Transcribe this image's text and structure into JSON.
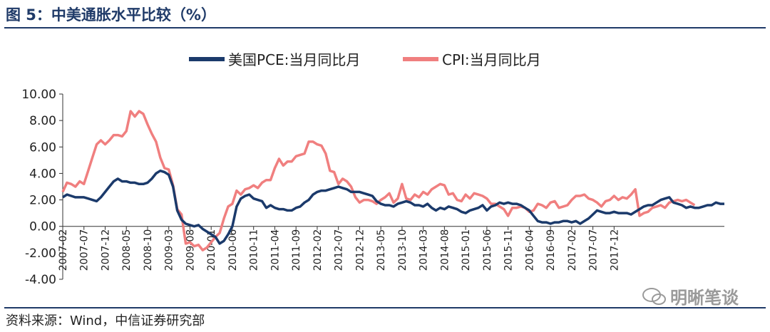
{
  "header": {
    "title": "图 5：中美通胀水平比较（%）"
  },
  "footer": {
    "source": "资料来源：Wind，中信证券研究部",
    "watermark": "明晰笔谈"
  },
  "colors": {
    "pce": "#1b3a6b",
    "cpi": "#f07f7f",
    "accent": "#1f3a68"
  },
  "chart_data": {
    "type": "line",
    "title": "",
    "xlabel": "",
    "ylabel": "",
    "ylim": [
      -4,
      10
    ],
    "yticks": [
      "10.00",
      "8.00",
      "6.00",
      "4.00",
      "2.00",
      "0.00",
      "-2.00",
      "-4.00"
    ],
    "x_start": "2007-02",
    "x_end": "2017-12",
    "xticks": [
      "2007-02",
      "2007-07",
      "2007-12",
      "2008-05",
      "2008-10",
      "2009-03",
      "2009-08",
      "2010-01",
      "2010-06",
      "2010-11",
      "2011-04",
      "2011-09",
      "2012-02",
      "2012-07",
      "2012-12",
      "2013-05",
      "2013-10",
      "2014-03",
      "2014-08",
      "2015-01",
      "2015-06",
      "2015-11",
      "2016-04",
      "2016-09",
      "2017-02",
      "2017-07",
      "2017-12"
    ],
    "legend_position": "top-center",
    "grid": false,
    "series": [
      {
        "name": "美国PCE:当月同比月",
        "color": "#1b3a6b",
        "values": [
          2.2,
          2.4,
          2.3,
          2.2,
          2.2,
          2.2,
          2.1,
          2.0,
          1.9,
          2.2,
          2.6,
          3.0,
          3.4,
          3.6,
          3.4,
          3.4,
          3.3,
          3.3,
          3.2,
          3.2,
          3.3,
          3.6,
          4.0,
          4.2,
          4.1,
          3.9,
          3.0,
          1.2,
          0.5,
          0.2,
          0.1,
          0.0,
          0.1,
          -0.2,
          -0.4,
          -0.6,
          -0.8,
          -1.3,
          -1.1,
          -0.6,
          0.0,
          1.5,
          2.1,
          2.3,
          2.4,
          2.1,
          2.0,
          1.9,
          1.4,
          1.6,
          1.4,
          1.3,
          1.3,
          1.2,
          1.2,
          1.4,
          1.5,
          1.8,
          2.0,
          2.4,
          2.6,
          2.7,
          2.7,
          2.8,
          2.9,
          3.0,
          2.9,
          2.8,
          2.6,
          2.6,
          2.6,
          2.5,
          2.4,
          2.3,
          1.9,
          1.7,
          1.6,
          1.6,
          1.5,
          1.7,
          1.8,
          1.9,
          1.8,
          1.6,
          1.6,
          1.5,
          1.7,
          1.4,
          1.2,
          1.4,
          1.3,
          1.5,
          1.4,
          1.3,
          1.1,
          1.0,
          1.2,
          1.3,
          1.4,
          1.6,
          1.2,
          1.5,
          1.6,
          1.8,
          1.7,
          1.8,
          1.7,
          1.7,
          1.6,
          1.4,
          1.2,
          0.8,
          0.4,
          0.3,
          0.3,
          0.2,
          0.3,
          0.3,
          0.4,
          0.4,
          0.3,
          0.4,
          0.2,
          0.4,
          0.6,
          0.9,
          1.2,
          1.1,
          1.0,
          1.0,
          1.1,
          1.0,
          1.0,
          1.0,
          0.9,
          1.1,
          1.3,
          1.5,
          1.6,
          1.6,
          1.8,
          2.0,
          2.1,
          2.2,
          1.8,
          1.7,
          1.6,
          1.4,
          1.5,
          1.4,
          1.4,
          1.5,
          1.6,
          1.6,
          1.8,
          1.7,
          1.7
        ]
      },
      {
        "name": "CPI:当月同比月",
        "color": "#f07f7f",
        "values": [
          2.6,
          3.3,
          3.2,
          3.0,
          3.4,
          3.2,
          4.2,
          5.2,
          6.2,
          6.5,
          6.2,
          6.5,
          6.9,
          6.9,
          6.8,
          7.2,
          8.7,
          8.3,
          8.7,
          8.5,
          7.7,
          7.0,
          6.4,
          5.2,
          4.4,
          4.3,
          3.1,
          1.3,
          0.9,
          -1.3,
          -1.2,
          -1.5,
          -1.4,
          -1.8,
          -1.6,
          -1.2,
          -0.8,
          -0.5,
          0.6,
          1.5,
          1.7,
          2.7,
          2.4,
          2.8,
          2.9,
          3.1,
          2.9,
          3.3,
          3.5,
          3.5,
          4.4,
          5.1,
          4.6,
          4.9,
          4.9,
          5.3,
          5.4,
          5.5,
          6.4,
          6.4,
          6.2,
          6.1,
          5.5,
          4.2,
          4.1,
          3.2,
          3.6,
          3.4,
          3.0,
          2.2,
          1.8,
          2.0,
          2.0,
          1.9,
          1.7,
          2.0,
          2.2,
          2.5,
          1.8,
          2.1,
          3.2,
          2.1,
          2.0,
          2.4,
          2.2,
          2.6,
          2.4,
          2.8,
          3.0,
          3.2,
          3.1,
          2.4,
          2.5,
          2.0,
          1.9,
          2.4,
          2.1,
          2.5,
          2.4,
          2.3,
          2.1,
          1.7,
          1.7,
          1.5,
          1.3,
          0.8,
          1.4,
          1.4,
          1.5,
          1.4,
          1.1,
          1.2,
          1.7,
          1.6,
          1.4,
          1.8,
          1.9,
          1.4,
          1.5,
          1.6,
          2.0,
          2.3,
          2.3,
          2.4,
          2.1,
          2.0,
          1.8,
          1.5,
          1.9,
          2.0,
          2.3,
          2.0,
          2.2,
          2.1,
          2.4,
          2.8,
          0.8,
          1.0,
          1.1,
          1.4,
          1.5,
          1.6,
          1.4,
          1.8,
          1.9,
          2.0,
          1.9,
          2.0,
          1.8,
          1.6
        ]
      }
    ]
  }
}
